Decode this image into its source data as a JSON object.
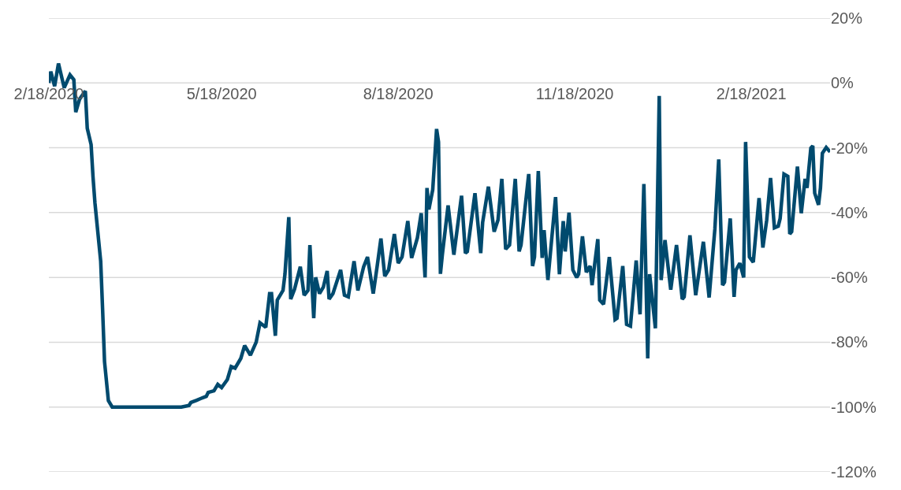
{
  "chart_data": {
    "type": "line",
    "x": [
      "2020-02-18",
      "2020-02-19",
      "2020-02-21",
      "2020-02-23",
      "2020-02-25",
      "2020-02-26",
      "2020-02-29",
      "2020-03-02",
      "2020-03-03",
      "2020-03-05",
      "2020-03-08",
      "2020-03-09",
      "2020-03-11",
      "2020-03-12",
      "2020-03-13",
      "2020-03-16",
      "2020-03-17",
      "2020-03-18",
      "2020-03-20",
      "2020-03-22",
      "2020-04-27",
      "2020-05-01",
      "2020-05-02",
      "2020-05-05",
      "2020-05-07",
      "2020-05-10",
      "2020-05-11",
      "2020-05-14",
      "2020-05-16",
      "2020-05-18",
      "2020-05-21",
      "2020-05-23",
      "2020-05-25",
      "2020-05-28",
      "2020-05-30",
      "2020-06-02",
      "2020-06-05",
      "2020-06-07",
      "2020-06-10",
      "2020-06-12",
      "2020-06-13",
      "2020-06-15",
      "2020-06-16",
      "2020-06-19",
      "2020-06-20",
      "2020-06-22",
      "2020-06-23",
      "2020-06-25",
      "2020-06-28",
      "2020-06-30",
      "2020-07-02",
      "2020-07-03",
      "2020-07-05",
      "2020-07-06",
      "2020-07-08",
      "2020-07-10",
      "2020-07-12",
      "2020-07-13",
      "2020-07-15",
      "2020-07-19",
      "2020-07-21",
      "2020-07-23",
      "2020-07-26",
      "2020-07-28",
      "2020-07-31",
      "2020-08-02",
      "2020-08-05",
      "2020-08-07",
      "2020-08-09",
      "2020-08-11",
      "2020-08-13",
      "2020-08-16",
      "2020-08-18",
      "2020-08-20",
      "2020-08-23",
      "2020-08-25",
      "2020-08-28",
      "2020-08-30",
      "2020-09-01",
      "2020-09-02",
      "2020-09-03",
      "2020-09-05",
      "2020-09-07",
      "2020-09-08",
      "2020-09-09",
      "2020-09-10",
      "2020-09-13",
      "2020-09-16",
      "2020-09-20",
      "2020-09-22",
      "2020-09-23",
      "2020-09-27",
      "2020-09-30",
      "2020-10-01",
      "2020-10-04",
      "2020-10-07",
      "2020-10-09",
      "2020-10-11",
      "2020-10-13",
      "2020-10-15",
      "2020-10-18",
      "2020-10-20",
      "2020-10-21",
      "2020-10-25",
      "2020-10-27",
      "2020-10-28",
      "2020-10-30",
      "2020-11-01",
      "2020-11-02",
      "2020-11-04",
      "2020-11-08",
      "2020-11-10",
      "2020-11-12",
      "2020-11-13",
      "2020-11-15",
      "2020-11-17",
      "2020-11-19",
      "2020-11-20",
      "2020-11-22",
      "2020-11-24",
      "2020-11-26",
      "2020-11-27",
      "2020-11-30",
      "2020-12-01",
      "2020-12-03",
      "2020-12-06",
      "2020-12-09",
      "2020-12-10",
      "2020-12-13",
      "2020-12-15",
      "2020-12-17",
      "2020-12-20",
      "2020-12-22",
      "2020-12-24",
      "2020-12-26",
      "2020-12-27",
      "2020-12-30",
      "2021-01-01",
      "2021-01-02",
      "2021-01-04",
      "2021-01-07",
      "2021-01-10",
      "2021-01-13",
      "2021-01-14",
      "2021-01-17",
      "2021-01-20",
      "2021-01-24",
      "2021-01-27",
      "2021-01-30",
      "2021-02-01",
      "2021-02-03",
      "2021-02-04",
      "2021-02-07",
      "2021-02-09",
      "2021-02-10",
      "2021-02-12",
      "2021-02-14",
      "2021-02-15",
      "2021-02-17",
      "2021-02-19",
      "2021-02-22",
      "2021-02-24",
      "2021-02-26",
      "2021-02-28",
      "2021-03-02",
      "2021-03-04",
      "2021-03-05",
      "2021-03-07",
      "2021-03-09",
      "2021-03-10",
      "2021-03-11",
      "2021-03-14",
      "2021-03-16",
      "2021-03-18",
      "2021-03-19",
      "2021-03-21",
      "2021-03-22",
      "2021-03-23",
      "2021-03-25",
      "2021-03-26",
      "2021-03-27",
      "2021-03-29",
      "2021-03-31"
    ],
    "values": [
      0,
      3.5,
      -1,
      6,
      1,
      -1.5,
      2.5,
      1,
      -9,
      -5,
      -2.5,
      -14,
      -19,
      -29,
      -37,
      -55,
      -70,
      -86,
      -98,
      -100,
      -100,
      -99.5,
      -98.6,
      -97.9,
      -97.4,
      -96.7,
      -95.5,
      -95,
      -93,
      -94,
      -91.5,
      -87.5,
      -88,
      -85,
      -81,
      -84,
      -80,
      -74,
      -75.4,
      -65,
      -65,
      -78,
      -67,
      -64,
      -59,
      -41.4,
      -66.7,
      -63.6,
      -56.7,
      -65.5,
      -64,
      -50,
      -72.6,
      -60,
      -65,
      -63,
      -58,
      -66.7,
      -65,
      -57.7,
      -65.5,
      -66,
      -55,
      -64,
      -56.7,
      -53.7,
      -65,
      -56.7,
      -48,
      -59.6,
      -57.7,
      -46.6,
      -55.6,
      -53.7,
      -42.6,
      -54,
      -47.8,
      -40.2,
      -60,
      -32.4,
      -39,
      -32.9,
      -14.2,
      -18.2,
      -58.9,
      -53,
      -37.8,
      -53,
      -34.8,
      -52.5,
      -52,
      -34,
      -52.5,
      -43,
      -32,
      -45.9,
      -42.3,
      -29.6,
      -51.3,
      -50,
      -29.6,
      -52,
      -50,
      -28.1,
      -56.5,
      -53.7,
      -27.2,
      -54,
      -45.4,
      -60.8,
      -35.2,
      -59,
      -42.6,
      -52,
      -40,
      -57.7,
      -60,
      -59,
      -47.3,
      -58.4,
      -56.5,
      -62.4,
      -48.2,
      -67,
      -68.3,
      -53.7,
      -73,
      -72.6,
      -56.5,
      -74.5,
      -75,
      -54.8,
      -71.4,
      -31.2,
      -85,
      -59,
      -75.7,
      -4,
      -60.8,
      -48.5,
      -63.8,
      -50,
      -66.7,
      -66,
      -47,
      -65.5,
      -49,
      -66.2,
      -45,
      -23.6,
      -62.4,
      -61.5,
      -41.8,
      -66,
      -57.7,
      -55.6,
      -60,
      -18.2,
      -53.7,
      -55.3,
      -35.5,
      -50.8,
      -42.3,
      -29.3,
      -44.7,
      -44.2,
      -41.8,
      -28.1,
      -28.8,
      -46.6,
      -45.9,
      -25.8,
      -40.2,
      -29.6,
      -32.4,
      -20.1,
      -19.4,
      -34,
      -37.6,
      -32.4,
      -21.7,
      -19.9,
      -21.3
    ],
    "color": "#004a6e",
    "xlim": [
      "2020-02-18",
      "2021-03-31"
    ],
    "xticks": [
      {
        "value": "2020-02-18",
        "label": "2/18/2020"
      },
      {
        "value": "2020-05-18",
        "label": "5/18/2020"
      },
      {
        "value": "2020-08-18",
        "label": "8/18/2020"
      },
      {
        "value": "2020-11-18",
        "label": "11/18/2020"
      },
      {
        "value": "2021-02-18",
        "label": "2/18/2021"
      }
    ],
    "ylim": [
      -120,
      20
    ],
    "yticks": [
      {
        "value": 20,
        "label": "20%"
      },
      {
        "value": 0,
        "label": "0%"
      },
      {
        "value": -20,
        "label": "-20%"
      },
      {
        "value": -40,
        "label": "-40%"
      },
      {
        "value": -60,
        "label": "-60%"
      },
      {
        "value": -80,
        "label": "-80%"
      },
      {
        "value": -100,
        "label": "-100%"
      },
      {
        "value": -120,
        "label": "-120%"
      }
    ],
    "grid": "y"
  }
}
